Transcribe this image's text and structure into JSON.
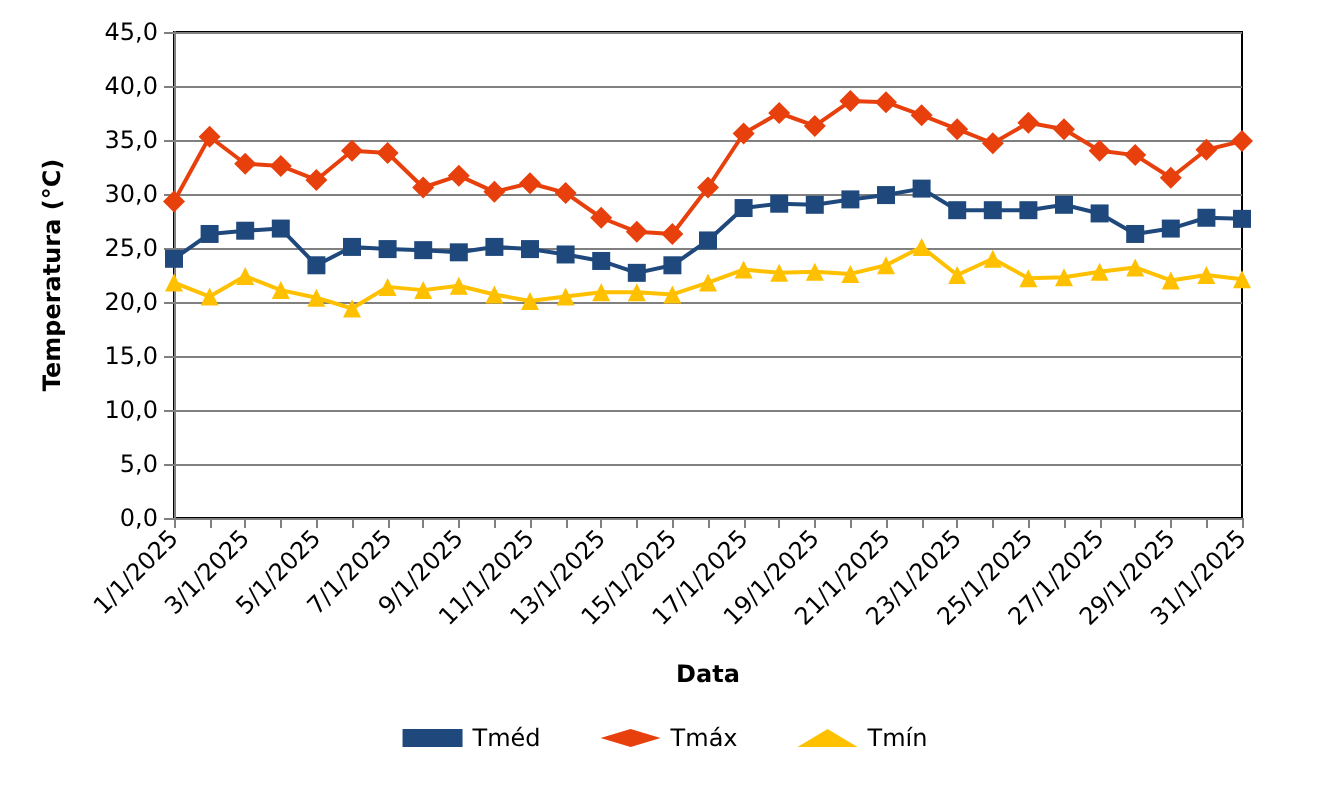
{
  "chart_data": {
    "type": "line",
    "xlabel": "Data",
    "ylabel": "Temperatura (°C)",
    "categories": [
      "1/1/2025",
      null,
      "3/1/2025",
      null,
      "5/1/2025",
      null,
      "7/1/2025",
      null,
      "9/1/2025",
      null,
      "11/1/2025",
      null,
      "13/1/2025",
      null,
      "15/1/2025",
      null,
      "17/1/2025",
      null,
      "19/1/2025",
      null,
      "21/1/2025",
      null,
      "23/1/2025",
      null,
      "25/1/2025",
      null,
      "27/1/2025",
      null,
      "29/1/2025",
      null,
      "31/1/2025"
    ],
    "series": [
      {
        "name": "Tméd",
        "color": "#1f497d",
        "marker": "square",
        "values": [
          24.0,
          26.3,
          26.6,
          26.8,
          23.4,
          25.1,
          24.9,
          24.8,
          24.6,
          25.1,
          24.9,
          24.4,
          23.8,
          22.7,
          23.4,
          25.7,
          28.7,
          29.1,
          29.0,
          29.5,
          29.9,
          30.5,
          28.5,
          28.5,
          28.5,
          29.0,
          28.2,
          26.3,
          26.8,
          27.8,
          27.7
        ]
      },
      {
        "name": "Tmáx",
        "color": "#e8400c",
        "marker": "diamond",
        "values": [
          29.3,
          35.3,
          32.8,
          32.6,
          31.3,
          34.0,
          33.8,
          30.6,
          31.7,
          30.2,
          31.0,
          30.1,
          27.8,
          26.5,
          26.3,
          30.6,
          35.6,
          37.5,
          36.3,
          38.6,
          38.5,
          37.3,
          36.0,
          34.7,
          36.6,
          36.0,
          34.0,
          33.6,
          31.5,
          34.1,
          34.9
        ]
      },
      {
        "name": "Tmín",
        "color": "#ffc000",
        "marker": "triangle",
        "values": [
          21.8,
          20.5,
          22.4,
          21.1,
          20.4,
          19.4,
          21.4,
          21.1,
          21.5,
          20.7,
          20.1,
          20.5,
          20.9,
          20.9,
          20.7,
          21.8,
          23.0,
          22.7,
          22.8,
          22.6,
          23.4,
          25.1,
          22.5,
          24.0,
          22.2,
          22.3,
          22.8,
          23.2,
          22.0,
          22.5,
          22.1
        ]
      }
    ],
    "ylim": [
      0,
      45
    ],
    "yticks": [
      {
        "value": 0,
        "label": "0,0"
      },
      {
        "value": 5,
        "label": "5,0"
      },
      {
        "value": 10,
        "label": "10,0"
      },
      {
        "value": 15,
        "label": "15,0"
      },
      {
        "value": 20,
        "label": "20,0"
      },
      {
        "value": 25,
        "label": "25,0"
      },
      {
        "value": 30,
        "label": "30,0"
      },
      {
        "value": 35,
        "label": "35,0"
      },
      {
        "value": 40,
        "label": "40,0"
      },
      {
        "value": 45,
        "label": "45,0"
      }
    ],
    "grid": "y",
    "legend": "bottom",
    "line_style": "solid"
  }
}
